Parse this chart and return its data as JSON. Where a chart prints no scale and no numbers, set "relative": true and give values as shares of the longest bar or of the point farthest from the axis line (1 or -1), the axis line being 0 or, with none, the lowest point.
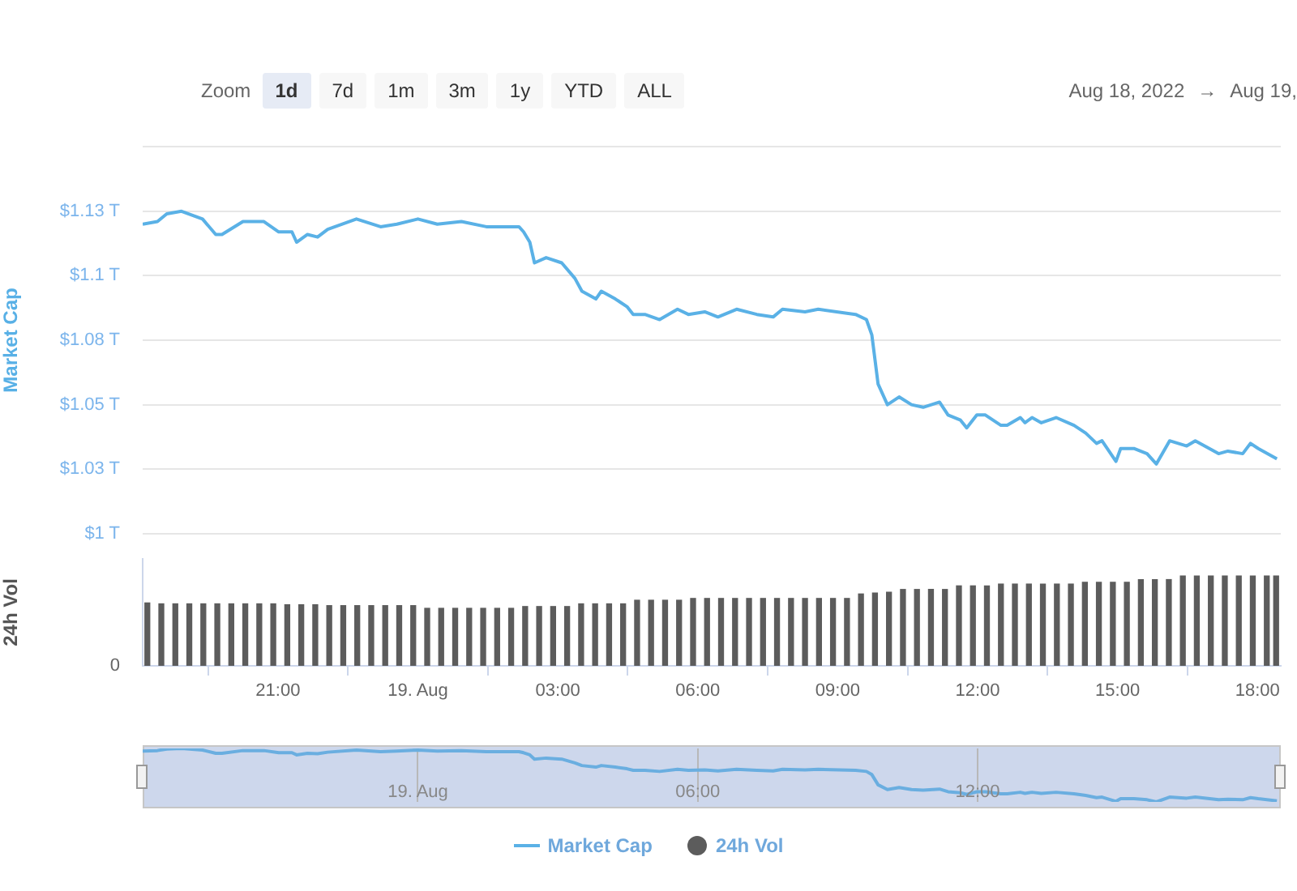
{
  "chart_data": [
    {
      "type": "line",
      "ylabel": "Market Cap",
      "legend": "bottom",
      "grid": "y",
      "tick_labels": "y",
      "annotations": [
        "Zoom",
        "1d",
        "7d",
        "1m",
        "3m",
        "1y",
        "YTD",
        "ALL",
        "Aug 18, 2022",
        "→",
        "Aug 19,"
      ],
      "xlim": [
        "2022-08-18T18:06",
        "2022-08-19T18:30"
      ],
      "ylim": [
        1.0,
        1.15
      ],
      "yticks": [
        {
          "value": 1.0,
          "label": "$1 T"
        },
        {
          "value": 1.025,
          "label": "$1.03 T"
        },
        {
          "value": 1.05,
          "label": "$1.05 T"
        },
        {
          "value": 1.075,
          "label": "$1.08 T"
        },
        {
          "value": 1.1,
          "label": "$1.1 T"
        },
        {
          "value": 1.125,
          "label": "$1.13 T"
        },
        {
          "value": 1.15,
          "label": null
        }
      ],
      "x": [
        "2022-08-18T18:06",
        "2022-08-18T18:25",
        "2022-08-18T18:37",
        "2022-08-18T18:56",
        "2022-08-18T19:23",
        "2022-08-18T19:40",
        "2022-08-18T19:48",
        "2022-08-18T20:15",
        "2022-08-18T20:42",
        "2022-08-18T21:01",
        "2022-08-18T21:18",
        "2022-08-18T21:24",
        "2022-08-18T21:38",
        "2022-08-18T21:51",
        "2022-08-18T22:04",
        "2022-08-18T22:41",
        "2022-08-18T23:12",
        "2022-08-18T23:33",
        "2022-08-19T00:00",
        "2022-08-19T00:25",
        "2022-08-19T00:56",
        "2022-08-19T01:28",
        "2022-08-19T02:10",
        "2022-08-19T02:16",
        "2022-08-19T02:24",
        "2022-08-19T02:30",
        "2022-08-19T02:45",
        "2022-08-19T03:05",
        "2022-08-19T03:22",
        "2022-08-19T03:31",
        "2022-08-19T03:49",
        "2022-08-19T03:56",
        "2022-08-19T04:14",
        "2022-08-19T04:29",
        "2022-08-19T04:37",
        "2022-08-19T04:52",
        "2022-08-19T05:11",
        "2022-08-19T05:34",
        "2022-08-19T05:48",
        "2022-08-19T06:09",
        "2022-08-19T06:26",
        "2022-08-19T06:50",
        "2022-08-19T07:16",
        "2022-08-19T07:37",
        "2022-08-19T07:49",
        "2022-08-19T08:18",
        "2022-08-19T08:35",
        "2022-08-19T09:23",
        "2022-08-19T09:37",
        "2022-08-19T09:44",
        "2022-08-19T09:52",
        "2022-08-19T10:04",
        "2022-08-19T10:19",
        "2022-08-19T10:35",
        "2022-08-19T10:50",
        "2022-08-19T11:11",
        "2022-08-19T11:22",
        "2022-08-19T11:38",
        "2022-08-19T11:46",
        "2022-08-19T11:59",
        "2022-08-19T12:10",
        "2022-08-19T12:30",
        "2022-08-19T12:38",
        "2022-08-19T12:55",
        "2022-08-19T13:01",
        "2022-08-19T13:10",
        "2022-08-19T13:22",
        "2022-08-19T13:41",
        "2022-08-19T14:04",
        "2022-08-19T14:19",
        "2022-08-19T14:33",
        "2022-08-19T14:40",
        "2022-08-19T14:58",
        "2022-08-19T15:04",
        "2022-08-19T15:21",
        "2022-08-19T15:38",
        "2022-08-19T15:50",
        "2022-08-19T16:07",
        "2022-08-19T16:29",
        "2022-08-19T16:40",
        "2022-08-19T17:10",
        "2022-08-19T17:22",
        "2022-08-19T17:41",
        "2022-08-19T17:51",
        "2022-08-19T18:01",
        "2022-08-19T18:25"
      ],
      "series": [
        {
          "name": "Market Cap",
          "color": "#5ab1e6",
          "values": [
            1.12,
            1.121,
            1.124,
            1.125,
            1.122,
            1.116,
            1.116,
            1.121,
            1.121,
            1.117,
            1.117,
            1.113,
            1.116,
            1.115,
            1.118,
            1.122,
            1.119,
            1.12,
            1.122,
            1.12,
            1.121,
            1.119,
            1.119,
            1.117,
            1.113,
            1.105,
            1.107,
            1.105,
            1.099,
            1.094,
            1.091,
            1.094,
            1.091,
            1.088,
            1.085,
            1.085,
            1.083,
            1.087,
            1.085,
            1.086,
            1.084,
            1.087,
            1.085,
            1.084,
            1.087,
            1.086,
            1.087,
            1.085,
            1.083,
            1.077,
            1.058,
            1.05,
            1.053,
            1.05,
            1.049,
            1.051,
            1.046,
            1.044,
            1.041,
            1.046,
            1.046,
            1.042,
            1.042,
            1.045,
            1.043,
            1.045,
            1.043,
            1.045,
            1.042,
            1.039,
            1.035,
            1.036,
            1.028,
            1.033,
            1.033,
            1.031,
            1.027,
            1.036,
            1.034,
            1.036,
            1.031,
            1.032,
            1.031,
            1.035,
            1.033,
            1.029
          ]
        }
      ]
    },
    {
      "type": "bar",
      "ylabel": "24h Vol",
      "legend": "bottom",
      "relative": true,
      "tick_labels": "x",
      "annotations": [
        "0"
      ],
      "xlim": [
        "2022-08-18T18:06",
        "2022-08-19T18:30"
      ],
      "xticks": [
        {
          "value": "2022-08-18T21:00",
          "label": "21:00"
        },
        {
          "value": "2022-08-19T00:00",
          "label": "19. Aug"
        },
        {
          "value": "2022-08-19T03:00",
          "label": "03:00"
        },
        {
          "value": "2022-08-19T06:00",
          "label": "06:00"
        },
        {
          "value": "2022-08-19T09:00",
          "label": "09:00"
        },
        {
          "value": "2022-08-19T12:00",
          "label": "12:00"
        },
        {
          "value": "2022-08-19T15:00",
          "label": "15:00"
        },
        {
          "value": "2022-08-19T18:00",
          "label": "18:00"
        }
      ],
      "x": [
        "2022-08-18T18:12",
        "2022-08-18T18:30",
        "2022-08-18T18:48",
        "2022-08-18T19:06",
        "2022-08-18T19:24",
        "2022-08-18T19:42",
        "2022-08-18T20:00",
        "2022-08-18T20:18",
        "2022-08-18T20:36",
        "2022-08-18T20:54",
        "2022-08-18T21:12",
        "2022-08-18T21:30",
        "2022-08-18T21:48",
        "2022-08-18T22:06",
        "2022-08-18T22:24",
        "2022-08-18T22:42",
        "2022-08-18T23:00",
        "2022-08-18T23:18",
        "2022-08-18T23:36",
        "2022-08-18T23:54",
        "2022-08-19T00:12",
        "2022-08-19T00:30",
        "2022-08-19T00:48",
        "2022-08-19T01:06",
        "2022-08-19T01:24",
        "2022-08-19T01:42",
        "2022-08-19T02:00",
        "2022-08-19T02:18",
        "2022-08-19T02:36",
        "2022-08-19T02:54",
        "2022-08-19T03:12",
        "2022-08-19T03:30",
        "2022-08-19T03:48",
        "2022-08-19T04:06",
        "2022-08-19T04:24",
        "2022-08-19T04:42",
        "2022-08-19T05:00",
        "2022-08-19T05:18",
        "2022-08-19T05:36",
        "2022-08-19T05:54",
        "2022-08-19T06:12",
        "2022-08-19T06:30",
        "2022-08-19T06:48",
        "2022-08-19T07:06",
        "2022-08-19T07:24",
        "2022-08-19T07:42",
        "2022-08-19T08:00",
        "2022-08-19T08:18",
        "2022-08-19T08:36",
        "2022-08-19T08:54",
        "2022-08-19T09:12",
        "2022-08-19T09:30",
        "2022-08-19T09:48",
        "2022-08-19T10:06",
        "2022-08-19T10:24",
        "2022-08-19T10:42",
        "2022-08-19T11:00",
        "2022-08-19T11:18",
        "2022-08-19T11:36",
        "2022-08-19T11:54",
        "2022-08-19T12:12",
        "2022-08-19T12:30",
        "2022-08-19T12:48",
        "2022-08-19T13:06",
        "2022-08-19T13:24",
        "2022-08-19T13:42",
        "2022-08-19T14:00",
        "2022-08-19T14:18",
        "2022-08-19T14:36",
        "2022-08-19T14:54",
        "2022-08-19T15:12",
        "2022-08-19T15:30",
        "2022-08-19T15:48",
        "2022-08-19T16:06",
        "2022-08-19T16:24",
        "2022-08-19T16:42",
        "2022-08-19T17:00",
        "2022-08-19T17:18",
        "2022-08-19T17:36",
        "2022-08-19T17:54",
        "2022-08-19T18:12",
        "2022-08-19T18:24"
      ],
      "series": [
        {
          "name": "24h Vol",
          "color": "#5c5c5c",
          "values": [
            0.7,
            0.69,
            0.69,
            0.69,
            0.69,
            0.69,
            0.69,
            0.69,
            0.69,
            0.69,
            0.68,
            0.68,
            0.68,
            0.67,
            0.67,
            0.67,
            0.67,
            0.67,
            0.67,
            0.67,
            0.64,
            0.64,
            0.64,
            0.64,
            0.64,
            0.64,
            0.64,
            0.66,
            0.66,
            0.66,
            0.66,
            0.69,
            0.69,
            0.69,
            0.69,
            0.73,
            0.73,
            0.73,
            0.73,
            0.75,
            0.75,
            0.75,
            0.75,
            0.75,
            0.75,
            0.75,
            0.75,
            0.75,
            0.75,
            0.75,
            0.75,
            0.8,
            0.81,
            0.82,
            0.85,
            0.85,
            0.85,
            0.85,
            0.89,
            0.89,
            0.89,
            0.91,
            0.91,
            0.91,
            0.91,
            0.91,
            0.91,
            0.93,
            0.93,
            0.93,
            0.93,
            0.96,
            0.96,
            0.96,
            1.0,
            1.0,
            1.0,
            1.0,
            1.0,
            1.0,
            1.0,
            1.0
          ]
        }
      ]
    },
    {
      "type": "line",
      "grid": "x",
      "tick_labels": "x",
      "relative": true,
      "xlim": [
        "2022-08-18T18:06",
        "2022-08-19T18:30"
      ],
      "xticks": [
        {
          "value": "2022-08-19T00:00",
          "label": "19. Aug"
        },
        {
          "value": "2022-08-19T06:00",
          "label": "06:00"
        },
        {
          "value": "2022-08-19T12:00",
          "label": "12:00"
        }
      ],
      "x": [
        "2022-08-18T18:06",
        "2022-08-18T18:25",
        "2022-08-18T18:37",
        "2022-08-18T18:56",
        "2022-08-18T19:23",
        "2022-08-18T19:40",
        "2022-08-18T19:48",
        "2022-08-18T20:15",
        "2022-08-18T20:42",
        "2022-08-18T21:01",
        "2022-08-18T21:18",
        "2022-08-18T21:24",
        "2022-08-18T21:38",
        "2022-08-18T21:51",
        "2022-08-18T22:04",
        "2022-08-18T22:41",
        "2022-08-18T23:12",
        "2022-08-18T23:33",
        "2022-08-19T00:00",
        "2022-08-19T00:25",
        "2022-08-19T00:56",
        "2022-08-19T01:28",
        "2022-08-19T02:10",
        "2022-08-19T02:16",
        "2022-08-19T02:24",
        "2022-08-19T02:30",
        "2022-08-19T02:45",
        "2022-08-19T03:05",
        "2022-08-19T03:22",
        "2022-08-19T03:31",
        "2022-08-19T03:49",
        "2022-08-19T03:56",
        "2022-08-19T04:14",
        "2022-08-19T04:29",
        "2022-08-19T04:37",
        "2022-08-19T04:52",
        "2022-08-19T05:11",
        "2022-08-19T05:34",
        "2022-08-19T05:48",
        "2022-08-19T06:09",
        "2022-08-19T06:26",
        "2022-08-19T06:50",
        "2022-08-19T07:16",
        "2022-08-19T07:37",
        "2022-08-19T07:49",
        "2022-08-19T08:18",
        "2022-08-19T08:35",
        "2022-08-19T09:23",
        "2022-08-19T09:37",
        "2022-08-19T09:44",
        "2022-08-19T09:52",
        "2022-08-19T10:04",
        "2022-08-19T10:19",
        "2022-08-19T10:35",
        "2022-08-19T10:50",
        "2022-08-19T11:11",
        "2022-08-19T11:22",
        "2022-08-19T11:38",
        "2022-08-19T11:46",
        "2022-08-19T11:59",
        "2022-08-19T12:10",
        "2022-08-19T12:30",
        "2022-08-19T12:38",
        "2022-08-19T12:55",
        "2022-08-19T13:01",
        "2022-08-19T13:10",
        "2022-08-19T13:22",
        "2022-08-19T13:41",
        "2022-08-19T14:04",
        "2022-08-19T14:19",
        "2022-08-19T14:33",
        "2022-08-19T14:40",
        "2022-08-19T14:58",
        "2022-08-19T15:04",
        "2022-08-19T15:21",
        "2022-08-19T15:38",
        "2022-08-19T15:50",
        "2022-08-19T16:07",
        "2022-08-19T16:29",
        "2022-08-19T16:40",
        "2022-08-19T17:10",
        "2022-08-19T17:22",
        "2022-08-19T17:41",
        "2022-08-19T17:51",
        "2022-08-19T18:01",
        "2022-08-19T18:25"
      ],
      "series": [
        {
          "color": "#6aaee0",
          "values": [
            0.95,
            0.96,
            0.99,
            1.0,
            0.97,
            0.91,
            0.91,
            0.96,
            0.96,
            0.92,
            0.92,
            0.88,
            0.91,
            0.9,
            0.93,
            0.97,
            0.94,
            0.95,
            0.97,
            0.95,
            0.96,
            0.94,
            0.94,
            0.92,
            0.88,
            0.8,
            0.82,
            0.8,
            0.73,
            0.68,
            0.65,
            0.68,
            0.65,
            0.62,
            0.59,
            0.59,
            0.57,
            0.61,
            0.59,
            0.6,
            0.58,
            0.61,
            0.59,
            0.58,
            0.61,
            0.6,
            0.61,
            0.59,
            0.57,
            0.51,
            0.32,
            0.23,
            0.27,
            0.23,
            0.22,
            0.24,
            0.19,
            0.17,
            0.14,
            0.19,
            0.19,
            0.15,
            0.15,
            0.18,
            0.16,
            0.18,
            0.16,
            0.18,
            0.15,
            0.12,
            0.08,
            0.09,
            0.01,
            0.06,
            0.06,
            0.04,
            0.0,
            0.09,
            0.07,
            0.09,
            0.04,
            0.05,
            0.04,
            0.08,
            0.06,
            0.02
          ]
        }
      ]
    }
  ]
}
